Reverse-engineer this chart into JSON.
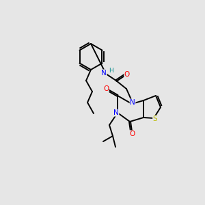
{
  "background_color": "#e6e6e6",
  "bond_color": "#000000",
  "atom_colors": {
    "N": "#0000ff",
    "O": "#ff0000",
    "S": "#bbbb00",
    "H": "#008888",
    "C": "#000000"
  },
  "figsize": [
    3.0,
    3.0
  ],
  "dpi": 100
}
